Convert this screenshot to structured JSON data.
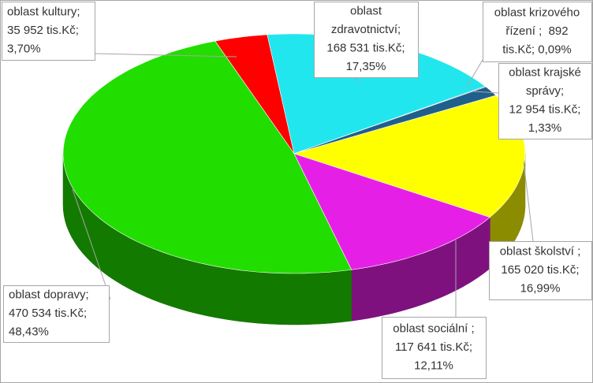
{
  "chart_data": {
    "type": "pie3d",
    "values": [
      35952,
      168531,
      892,
      12954,
      165020,
      117641,
      470534
    ],
    "value_labels": [
      [
        "oblast kultury;",
        "35 952 tis.Kč;",
        "3,70%"
      ],
      [
        "oblast",
        "zdravotnictví;",
        "168 531 tis.Kč;",
        "17,35%"
      ],
      [
        "oblast krizového",
        "řízení ;  892",
        "tis.Kč; 0,09%"
      ],
      [
        "oblast krajské",
        "správy;",
        "12 954 tis.Kč;",
        "1,33%"
      ],
      [
        "oblast školství ;",
        "165 020 tis.Kč;",
        "16,99%"
      ],
      [
        "oblast sociální ;",
        "117 641 tis.Kč;",
        "12,11%"
      ],
      [
        "oblast dopravy;",
        "470 534 tis.Kč;",
        "48,43%"
      ]
    ],
    "colors": [
      "#ff0000",
      "#22e6ee",
      "#3b3b8f",
      "#1f5f8b",
      "#ffff00",
      "#e61fe6",
      "#22dd00"
    ]
  }
}
